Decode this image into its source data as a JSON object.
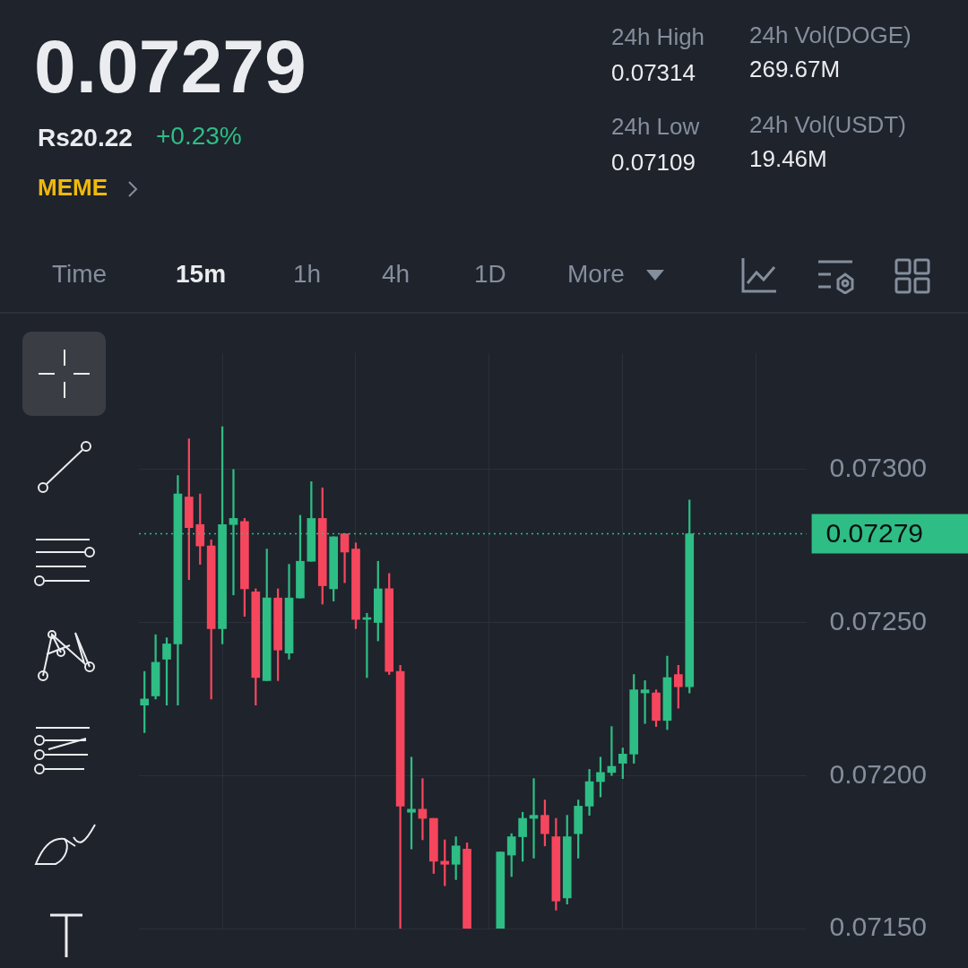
{
  "chart_data": {
    "type": "candlestick",
    "title": "0.07279",
    "subtitle": "Rs20.22",
    "annotations": [
      "+0.23%",
      "MEME",
      "24h High",
      "0.07314",
      "24h Low",
      "0.07109",
      "24h Vol(DOGE)",
      "269.67M",
      "24h Vol(USDT)",
      "19.46M",
      "Time",
      "15m",
      "1h",
      "4h",
      "1D",
      "More"
    ],
    "categories": [
      null,
      null,
      null,
      null,
      null,
      null,
      null,
      null,
      null,
      null,
      null,
      null,
      null,
      null,
      null,
      null,
      null,
      null,
      null,
      null,
      null,
      null,
      null,
      null,
      null,
      null,
      null,
      null,
      null,
      null,
      null,
      null,
      null,
      null,
      null,
      null,
      null,
      null,
      null,
      null,
      null,
      null,
      null,
      null,
      null,
      null,
      null,
      null,
      null,
      null,
      null,
      null,
      null,
      null,
      null,
      null,
      null,
      null,
      null,
      null
    ],
    "ohlc": [
      [
        0.07223,
        0.07234,
        0.07214,
        0.07225
      ],
      [
        0.07226,
        0.07246,
        0.07225,
        0.07237
      ],
      [
        0.07238,
        0.07245,
        0.07223,
        0.07243
      ],
      [
        0.07243,
        0.07298,
        0.07223,
        0.07292
      ],
      [
        0.07291,
        0.0731,
        0.07264,
        0.07281
      ],
      [
        0.07282,
        0.07292,
        0.07269,
        0.07275
      ],
      [
        0.07275,
        0.07277,
        0.07225,
        0.07248
      ],
      [
        0.07248,
        0.07314,
        0.07243,
        0.07282
      ],
      [
        0.07282,
        0.073,
        0.07259,
        0.07284
      ],
      [
        0.07283,
        0.07284,
        0.07252,
        0.07261
      ],
      [
        0.0726,
        0.07261,
        0.07223,
        0.07232
      ],
      [
        0.07231,
        0.07274,
        0.07231,
        0.07258
      ],
      [
        0.07258,
        0.07261,
        0.07231,
        0.07241
      ],
      [
        0.0724,
        0.07269,
        0.07238,
        0.07258
      ],
      [
        0.07258,
        0.07285,
        0.07258,
        0.0727
      ],
      [
        0.0727,
        0.07296,
        0.0727,
        0.07284
      ],
      [
        0.07284,
        0.07294,
        0.07256,
        0.07262
      ],
      [
        0.07261,
        0.07278,
        0.07257,
        0.07278
      ],
      [
        0.07279,
        0.07279,
        0.07263,
        0.07273
      ],
      [
        0.07274,
        0.07276,
        0.07248,
        0.07251
      ],
      [
        0.07251,
        0.07253,
        0.07232,
        0.07251
      ],
      [
        0.0725,
        0.0727,
        0.07244,
        0.07261
      ],
      [
        0.07261,
        0.07266,
        0.07233,
        0.07234
      ],
      [
        0.07234,
        0.07236,
        0.0715,
        0.0719
      ],
      [
        0.07188,
        0.07206,
        0.07176,
        0.07189
      ],
      [
        0.07189,
        0.07199,
        0.07179,
        0.07186
      ],
      [
        0.07186,
        0.07186,
        0.07168,
        0.07172
      ],
      [
        0.07172,
        0.07179,
        0.07164,
        0.07171
      ],
      [
        0.07171,
        0.0718,
        0.07166,
        0.07177
      ],
      [
        0.07176,
        0.07178,
        0.0715,
        0.0715
      ],
      null,
      null,
      [
        0.0715,
        0.07175,
        0.0715,
        0.07175
      ],
      [
        0.07174,
        0.07181,
        0.07167,
        0.0718
      ],
      [
        0.0718,
        0.07188,
        0.07172,
        0.07186
      ],
      [
        0.07186,
        0.07199,
        0.07173,
        0.07187
      ],
      [
        0.07187,
        0.07192,
        0.07177,
        0.07181
      ],
      [
        0.0718,
        0.07186,
        0.07156,
        0.07159
      ],
      [
        0.0716,
        0.07187,
        0.07158,
        0.0718
      ],
      [
        0.07181,
        0.07192,
        0.07173,
        0.0719
      ],
      [
        0.0719,
        0.07202,
        0.07187,
        0.07198
      ],
      [
        0.07198,
        0.07206,
        0.07193,
        0.07201
      ],
      [
        0.07201,
        0.07216,
        0.072,
        0.07203
      ],
      [
        0.07204,
        0.07209,
        0.07199,
        0.07207
      ],
      [
        0.07207,
        0.07233,
        0.07204,
        0.07228
      ],
      [
        0.07227,
        0.07231,
        0.07217,
        0.07228
      ],
      [
        0.07227,
        0.07228,
        0.07216,
        0.07218
      ],
      [
        0.07218,
        0.07239,
        0.07215,
        0.07232
      ],
      [
        0.07233,
        0.07236,
        0.07222,
        0.07229
      ],
      [
        0.07229,
        0.0729,
        0.07227,
        0.07279
      ],
      null,
      null,
      null,
      null,
      null,
      null,
      null,
      null,
      null,
      null
    ],
    "colors": [
      "#2ebd85",
      "#2ebd85",
      "#2ebd85",
      "#2ebd85",
      "#f6465d",
      "#f6465d",
      "#f6465d",
      "#2ebd85",
      "#2ebd85",
      "#f6465d",
      "#f6465d",
      "#2ebd85",
      "#f6465d",
      "#2ebd85",
      "#2ebd85",
      "#2ebd85",
      "#f6465d",
      "#2ebd85",
      "#f6465d",
      "#f6465d",
      "#2ebd85",
      "#2ebd85",
      "#f6465d",
      "#f6465d",
      "#2ebd85",
      "#f6465d",
      "#f6465d",
      "#f6465d",
      "#2ebd85",
      "#f6465d",
      null,
      null,
      "#2ebd85",
      "#2ebd85",
      "#2ebd85",
      "#2ebd85",
      "#f6465d",
      "#f6465d",
      "#2ebd85",
      "#2ebd85",
      "#2ebd85",
      "#2ebd85",
      "#2ebd85",
      "#2ebd85",
      "#2ebd85",
      "#2ebd85",
      "#f6465d",
      "#2ebd85",
      "#f6465d",
      "#2ebd85",
      null,
      null,
      null,
      null,
      null,
      null,
      null,
      null,
      null,
      null
    ],
    "ylim": [
      0.0715,
      0.07338
    ],
    "yticks": [
      {
        "value": 0.0715,
        "label": "0.07150"
      },
      {
        "value": 0.072,
        "label": "0.07200"
      },
      {
        "value": 0.0725,
        "label": "0.07250"
      },
      {
        "value": 0.073,
        "label": "0.07300"
      }
    ],
    "ref_lines": [
      {
        "axis": "y",
        "value": 0.07279,
        "label": "0.07279",
        "color": "#2ebd85",
        "line_style": "dotted"
      }
    ],
    "grid": true
  }
}
